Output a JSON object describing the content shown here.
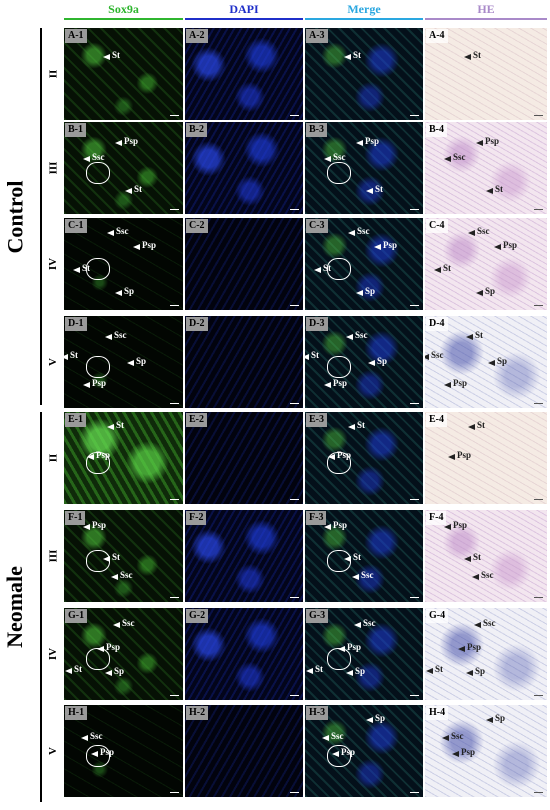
{
  "columns": [
    {
      "label": "Sox9a",
      "color": "#2fb52f"
    },
    {
      "label": "DAPI",
      "color": "#1f2fc9"
    },
    {
      "label": "Merge",
      "color": "#2aa7e0"
    },
    {
      "label": "HE",
      "color": "#a98ac9"
    }
  ],
  "groups": [
    {
      "label": "Control"
    },
    {
      "label": "Neomale"
    }
  ],
  "rows": [
    {
      "stage": "II",
      "panels": [
        "A-1",
        "A-2",
        "A-3",
        "A-4"
      ],
      "annotations": [
        [
          "St"
        ],
        [],
        [
          "St"
        ],
        [
          "St"
        ]
      ]
    },
    {
      "stage": "III",
      "panels": [
        "B-1",
        "B-2",
        "B-3",
        "B-4"
      ],
      "annotations": [
        [
          "Psp",
          "Ssc",
          "St"
        ],
        [],
        [
          "Psp",
          "Ssc",
          "St"
        ],
        [
          "Psp",
          "Ssc",
          "St"
        ]
      ]
    },
    {
      "stage": "IV",
      "panels": [
        "C-1",
        "C-2",
        "C-3",
        "C-4"
      ],
      "annotations": [
        [
          "Ssc",
          "Psp",
          "St",
          "Sp"
        ],
        [],
        [
          "Ssc",
          "Psp",
          "St",
          "Sp"
        ],
        [
          "Ssc",
          "Psp",
          "St",
          "Sp"
        ]
      ]
    },
    {
      "stage": "V",
      "panels": [
        "D-1",
        "D-2",
        "D-3",
        "D-4"
      ],
      "annotations": [
        [
          "Ssc",
          "St",
          "Sp",
          "Psp"
        ],
        [],
        [
          "Ssc",
          "St",
          "Sp",
          "Psp"
        ],
        [
          "St",
          "Ssc",
          "Sp",
          "Psp"
        ]
      ]
    },
    {
      "stage": "II",
      "panels": [
        "E-1",
        "E-2",
        "E-3",
        "E-4"
      ],
      "annotations": [
        [
          "St",
          "Psp"
        ],
        [],
        [
          "St",
          "Psp"
        ],
        [
          "St",
          "Psp"
        ]
      ]
    },
    {
      "stage": "III",
      "panels": [
        "F-1",
        "F-2",
        "F-3",
        "F-4"
      ],
      "annotations": [
        [
          "Psp",
          "St",
          "Ssc"
        ],
        [],
        [
          "Psp",
          "St",
          "Ssc"
        ],
        [
          "Psp",
          "St",
          "Ssc"
        ]
      ]
    },
    {
      "stage": "IV",
      "panels": [
        "G-1",
        "G-2",
        "G-3",
        "G-4"
      ],
      "annotations": [
        [
          "Ssc",
          "Psp",
          "St",
          "Sp"
        ],
        [],
        [
          "Ssc",
          "Psp",
          "St",
          "Sp"
        ],
        [
          "Ssc",
          "Psp",
          "St",
          "Sp"
        ]
      ]
    },
    {
      "stage": "V",
      "panels": [
        "H-1",
        "H-2",
        "H-3",
        "H-4"
      ],
      "annotations": [
        [
          "Ssc",
          "Psp"
        ],
        [],
        [
          "Ssc",
          "Psp",
          "Sp"
        ],
        [
          "Ssc",
          "Psp",
          "Sp"
        ]
      ]
    }
  ]
}
